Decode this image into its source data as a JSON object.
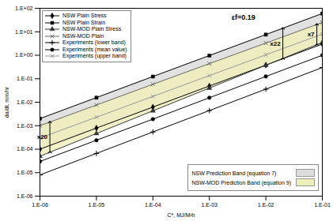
{
  "chart_data": {
    "type": "line",
    "log": true,
    "grid": false,
    "legend": "top-left",
    "xlabel": "C*, MJ/M²h",
    "ylabel": "da/dt, mm/hr",
    "xlim": [
      1e-06,
      0.1
    ],
    "ylim": [
      1e-06,
      100.0
    ],
    "xticks": [
      {
        "value": 1e-06,
        "label": "1.E-06"
      },
      {
        "value": 1e-05,
        "label": "1.E-05"
      },
      {
        "value": 0.0001,
        "label": "1.E-04"
      },
      {
        "value": 0.001,
        "label": "1.E-03"
      },
      {
        "value": 0.01,
        "label": "1.E-02"
      },
      {
        "value": 0.1,
        "label": "1.E-01"
      }
    ],
    "yticks": [
      {
        "value": 1e-06,
        "label": "1.E-06"
      },
      {
        "value": 1e-05,
        "label": "1.E-05"
      },
      {
        "value": 0.0001,
        "label": "1.E-04"
      },
      {
        "value": 0.001,
        "label": "1.E-03"
      },
      {
        "value": 0.01,
        "label": "1.E-02"
      },
      {
        "value": 0.1,
        "label": "1.E-01"
      },
      {
        "value": 1.0,
        "label": "1.E+00"
      },
      {
        "value": 10.0,
        "label": "1.E+01"
      },
      {
        "value": 100.0,
        "label": "1.E+02"
      }
    ],
    "x": [
      1e-06,
      1e-05,
      0.0001,
      0.001,
      0.01,
      0.1
    ],
    "series": [
      {
        "name": "NSW Plain Stress",
        "color": "#000000",
        "marker": "diamond",
        "line_style": "solid",
        "values": [
          0.0001,
          0.00079,
          0.0062,
          0.049,
          0.38,
          3
        ]
      },
      {
        "name": "NSW Plain Strain",
        "color": "#000000",
        "marker": "square",
        "line_style": "solid",
        "values": [
          0.002,
          0.0157,
          0.124,
          0.97,
          7.6,
          60
        ]
      },
      {
        "name": "NSW-MOD Plain Stress",
        "color": "#333333",
        "marker": "triangle",
        "line_style": "solid",
        "values": [
          5e-05,
          0.000465,
          0.0043,
          0.04,
          0.376,
          3.5
        ]
      },
      {
        "name": "NSW-MOD Plain",
        "color": "#666666",
        "marker": "times",
        "line_style": "solid",
        "values": [
          0.001,
          0.0076,
          0.058,
          0.44,
          3.3,
          25
        ]
      },
      {
        "name": "Experiments (lower band)",
        "color": "#000000",
        "marker": "plus",
        "line_style": "solid",
        "values": [
          8e-06,
          6.6e-05,
          0.00054,
          0.0044,
          0.036,
          0.3
        ]
      },
      {
        "name": "Experiments (mean value)",
        "color": "#000000",
        "marker": "circle",
        "line_style": "solid",
        "values": [
          3e-05,
          0.00024,
          0.0019,
          0.0155,
          0.125,
          1
        ]
      },
      {
        "name": "Experiments (upper band)",
        "color": "#999999",
        "marker": "times",
        "line_style": "solid",
        "values": [
          0.0003,
          0.0023,
          0.0177,
          0.136,
          1.04,
          8
        ]
      }
    ],
    "bands": [
      {
        "name": "NSW Prediction Band (equation 7)",
        "color": "#dcdcdc",
        "lower": "NSW Plain Stress",
        "upper": "NSW Plain Strain"
      },
      {
        "name": "NSW-MOD Prediction Band (equation 9)",
        "color": "#eeeebb",
        "lower": "NSW-MOD Plain Stress",
        "upper": "NSW-MOD Plain"
      }
    ],
    "annotations": [
      {
        "text": "εf=0.19",
        "x": 0.004,
        "y": 40
      },
      {
        "text": "x22",
        "x": 0.02,
        "y1": 0.71,
        "y2": 14
      },
      {
        "text": "x7",
        "x": 0.08,
        "y1": 2.8,
        "y2": 20.5
      },
      {
        "text": "x20",
        "x": 1.5e-06,
        "y1": 7.4e-05,
        "y2": 0.00143
      }
    ]
  }
}
